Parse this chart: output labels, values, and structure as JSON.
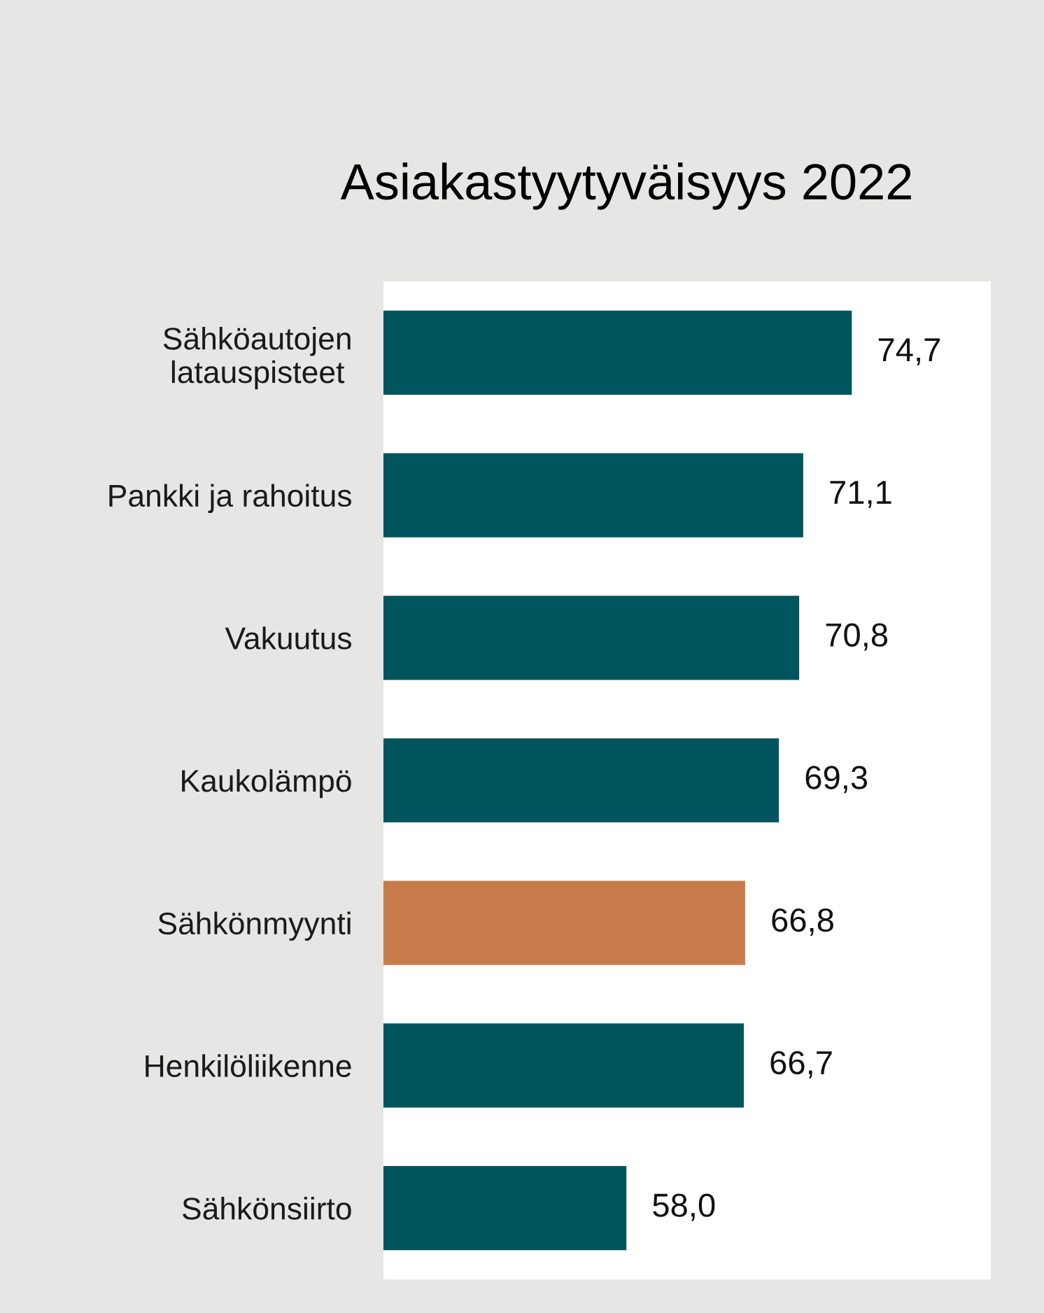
{
  "chart_data": {
    "type": "bar",
    "orientation": "horizontal",
    "title": "Asiakastyytyväisyys 2022",
    "categories": [
      "Sähköautojen\nlatauspisteet",
      "Pankki ja rahoitus",
      "Vakuutus",
      "Kaukolämpö",
      "Sähkönmyynti",
      "Henkilöliikenne",
      "Sähkönsiirto"
    ],
    "values": [
      74.7,
      71.1,
      70.8,
      69.3,
      66.8,
      66.7,
      58.0
    ],
    "value_labels": [
      "74,7",
      "71,1",
      "70,8",
      "69,3",
      "66,8",
      "66,7",
      "58,0"
    ],
    "colors": [
      "#02555e",
      "#02555e",
      "#02555e",
      "#02555e",
      "#c97c4b",
      "#02555e",
      "#02555e"
    ],
    "xlim": [
      40,
      85
    ],
    "tick_labels": "y"
  }
}
